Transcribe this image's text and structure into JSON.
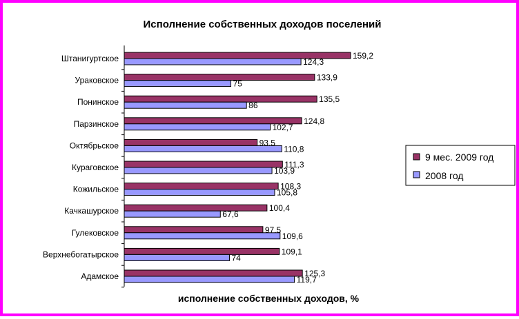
{
  "chart_data": {
    "type": "bar",
    "orientation": "horizontal",
    "title": "Исполнение собственных доходов поселений",
    "xlabel": "исполнение собственных доходов, %",
    "ylabel": "",
    "xlim": [
      0,
      175
    ],
    "grid": false,
    "legend_position": "right",
    "categories": [
      "Штанигуртское",
      "Ураковское",
      "Понинское",
      "Парзинское",
      "Октябрьское",
      "Кураговское",
      "Кожильское",
      "Качкашурское",
      "Гулековское",
      "Верхнебогатырское",
      "Адамское"
    ],
    "series": [
      {
        "name": "9 мес. 2009 год",
        "color": "#993366",
        "values": [
          159.2,
          133.9,
          135.5,
          124.8,
          93.5,
          111.3,
          108.3,
          100.4,
          97.5,
          109.1,
          125.3
        ],
        "labels": [
          "159,2",
          "133,9",
          "135,5",
          "124,8",
          "93,5",
          "111,3",
          "108,3",
          "100,4",
          "97,5",
          "109,1",
          "125,3"
        ]
      },
      {
        "name": "2008 год",
        "color": "#9999ff",
        "values": [
          124.3,
          75,
          86,
          102.7,
          110.8,
          103.9,
          105.8,
          67.6,
          109.6,
          74,
          119.7
        ],
        "labels": [
          "124,3",
          "75",
          "86",
          "102,7",
          "110,8",
          "103,9",
          "105,8",
          "67,6",
          "109,6",
          "74",
          "119,7"
        ]
      }
    ]
  }
}
